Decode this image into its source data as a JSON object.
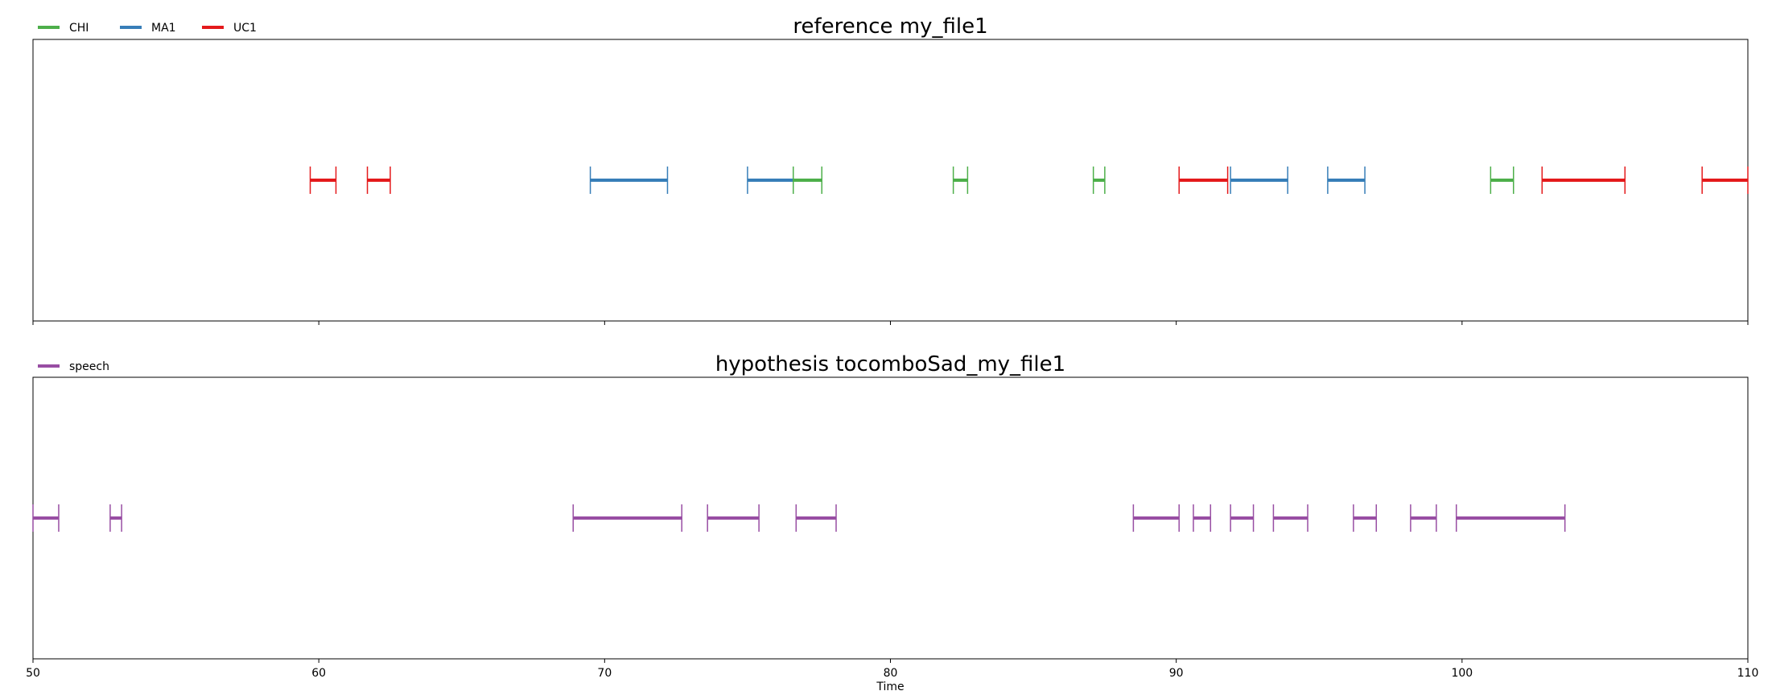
{
  "chart_data": {
    "type": "timeline",
    "xlabel": "Time",
    "xlim": [
      50,
      110
    ],
    "xticks": [
      "50",
      "60",
      "70",
      "80",
      "90",
      "100",
      "110"
    ],
    "subplots": [
      {
        "title": "reference my_file1",
        "legend": [
          {
            "name": "CHI",
            "color": "#4daf4a"
          },
          {
            "name": "MA1",
            "color": "#377eb8"
          },
          {
            "name": "UC1",
            "color": "#e41a1c"
          }
        ],
        "segments": [
          {
            "label": "UC1",
            "start": 59.7,
            "end": 60.6
          },
          {
            "label": "UC1",
            "start": 61.7,
            "end": 62.5
          },
          {
            "label": "MA1",
            "start": 69.5,
            "end": 72.2
          },
          {
            "label": "MA1",
            "start": 75.0,
            "end": 76.6
          },
          {
            "label": "CHI",
            "start": 76.6,
            "end": 77.6
          },
          {
            "label": "CHI",
            "start": 82.2,
            "end": 82.7
          },
          {
            "label": "CHI",
            "start": 87.1,
            "end": 87.5
          },
          {
            "label": "UC1",
            "start": 90.1,
            "end": 91.8
          },
          {
            "label": "MA1",
            "start": 91.9,
            "end": 93.9
          },
          {
            "label": "MA1",
            "start": 95.3,
            "end": 96.6
          },
          {
            "label": "CHI",
            "start": 101.0,
            "end": 101.8
          },
          {
            "label": "UC1",
            "start": 102.8,
            "end": 105.7
          },
          {
            "label": "UC1",
            "start": 108.4,
            "end": 110.0
          }
        ]
      },
      {
        "title": "hypothesis tocomboSad_my_file1",
        "legend": [
          {
            "name": "speech",
            "color": "#984ea3"
          }
        ],
        "segments": [
          {
            "label": "speech",
            "start": 50.0,
            "end": 50.9
          },
          {
            "label": "speech",
            "start": 52.7,
            "end": 53.1
          },
          {
            "label": "speech",
            "start": 68.9,
            "end": 72.7
          },
          {
            "label": "speech",
            "start": 73.6,
            "end": 75.4
          },
          {
            "label": "speech",
            "start": 76.7,
            "end": 78.1
          },
          {
            "label": "speech",
            "start": 88.5,
            "end": 90.1
          },
          {
            "label": "speech",
            "start": 90.6,
            "end": 91.2
          },
          {
            "label": "speech",
            "start": 91.9,
            "end": 92.7
          },
          {
            "label": "speech",
            "start": 93.4,
            "end": 94.6
          },
          {
            "label": "speech",
            "start": 96.2,
            "end": 97.0
          },
          {
            "label": "speech",
            "start": 98.2,
            "end": 99.1
          },
          {
            "label": "speech",
            "start": 99.8,
            "end": 103.6
          }
        ]
      }
    ]
  }
}
